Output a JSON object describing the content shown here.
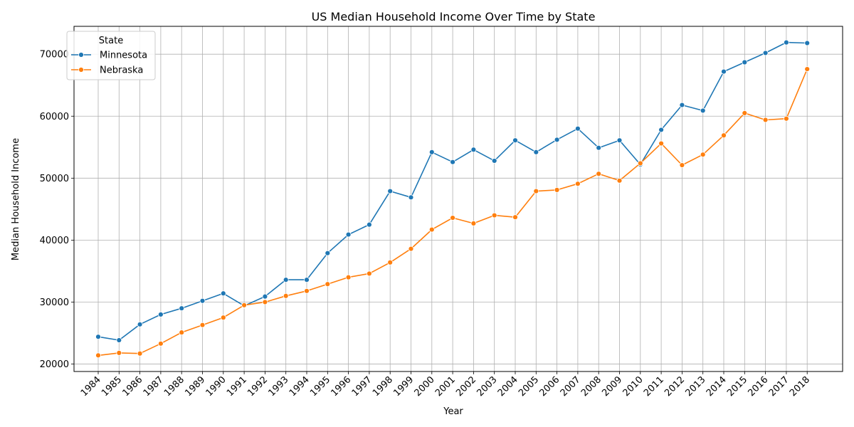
{
  "chart_data": {
    "type": "line",
    "title": "US Median Household Income Over Time by State",
    "xlabel": "Year",
    "ylabel": "Median Household Income",
    "x": [
      "1984",
      "1985",
      "1986",
      "1987",
      "1988",
      "1989",
      "1990",
      "1991",
      "1992",
      "1993",
      "1994",
      "1995",
      "1996",
      "1997",
      "1998",
      "1999",
      "2000",
      "2001",
      "2002",
      "2003",
      "2004",
      "2005",
      "2006",
      "2007",
      "2008",
      "2009",
      "2010",
      "2011",
      "2012",
      "2013",
      "2014",
      "2015",
      "2016",
      "2017",
      "2018"
    ],
    "yticks": [
      20000,
      30000,
      40000,
      50000,
      60000,
      70000
    ],
    "ylim": [
      18800,
      74500
    ],
    "grid": true,
    "legend": {
      "title": "State",
      "position": "top-left"
    },
    "series": [
      {
        "name": "Minnesota",
        "color": "#1f77b4",
        "marker": "circle",
        "values": [
          24400,
          23850,
          26400,
          28000,
          29000,
          30200,
          31400,
          29400,
          30900,
          33600,
          33600,
          37900,
          40900,
          42500,
          47900,
          46900,
          54200,
          52600,
          54600,
          52800,
          56100,
          54200,
          56200,
          58000,
          54900,
          56100,
          52200,
          57800,
          61800,
          60900,
          67200,
          68700,
          70200,
          71900,
          71800
        ]
      },
      {
        "name": "Nebraska",
        "color": "#ff7f0e",
        "marker": "circle",
        "values": [
          21400,
          21800,
          21700,
          23300,
          25100,
          26300,
          27500,
          29500,
          30000,
          31000,
          31800,
          32900,
          34000,
          34600,
          36400,
          38600,
          41700,
          43600,
          42700,
          44000,
          43700,
          47900,
          48100,
          49100,
          50700,
          49600,
          52400,
          55600,
          52100,
          53800,
          56900,
          60500,
          59400,
          59600,
          67600
        ]
      }
    ]
  }
}
